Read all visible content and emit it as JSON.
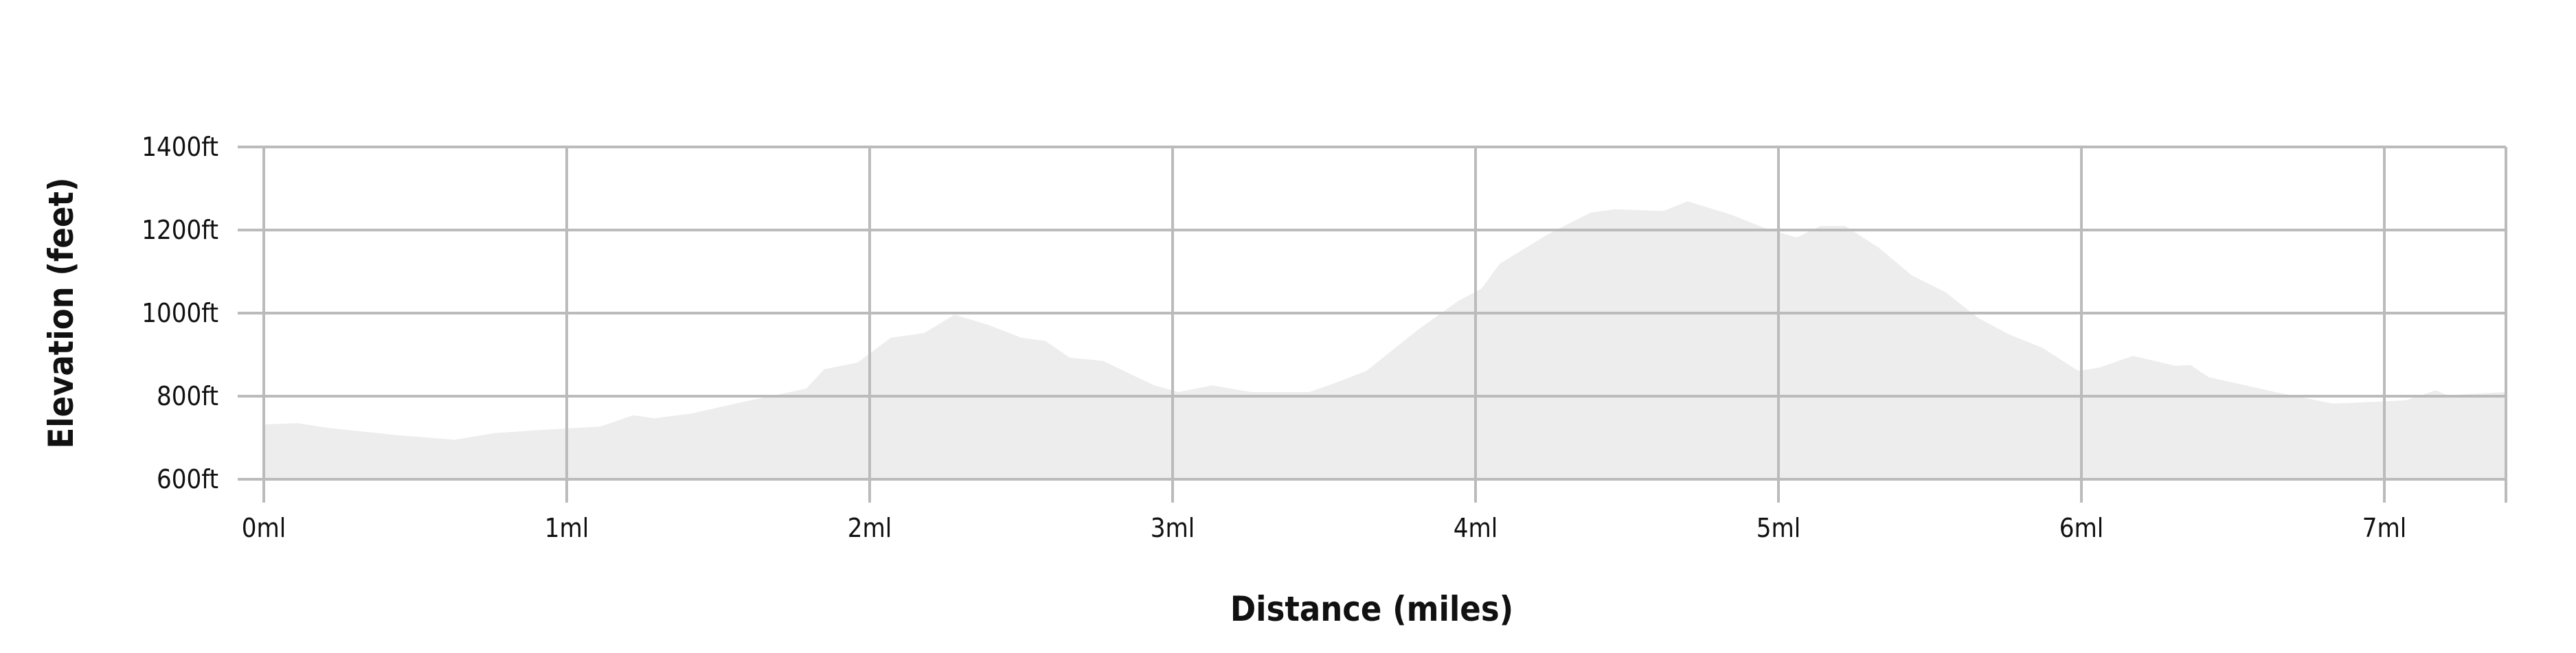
{
  "chart_data": {
    "type": "area",
    "title": "",
    "xlabel": "Distance (miles)",
    "ylabel": "Elevation (feet)",
    "xlim": [
      0,
      7.4
    ],
    "ylim": [
      600,
      1400
    ],
    "grid": true,
    "fill_color": "#ededed",
    "grid_color": "#bbbbbb",
    "x_ticks": [
      0,
      1,
      2,
      3,
      4,
      5,
      6,
      7
    ],
    "x_tick_labels": [
      "0ml",
      "1ml",
      "2ml",
      "3ml",
      "4ml",
      "5ml",
      "6ml",
      "7ml"
    ],
    "y_ticks": [
      600,
      800,
      1000,
      1200,
      1400
    ],
    "y_tick_labels": [
      "600ft",
      "800ft",
      "1000ft",
      "1200ft",
      "1400ft"
    ],
    "x": [
      0,
      0.11,
      0.22,
      0.43,
      0.63,
      0.76,
      0.92,
      1.11,
      1.22,
      1.29,
      1.41,
      1.58,
      1.79,
      1.85,
      1.96,
      2.07,
      2.18,
      2.28,
      2.39,
      2.5,
      2.58,
      2.66,
      2.77,
      2.94,
      3.02,
      3.13,
      3.26,
      3.45,
      3.53,
      3.64,
      3.81,
      3.94,
      4.02,
      4.08,
      4.24,
      4.38,
      4.46,
      4.62,
      4.7,
      4.84,
      4.95,
      5.06,
      5.14,
      5.22,
      5.33,
      5.44,
      5.55,
      5.66,
      5.76,
      5.87,
      5.99,
      6.06,
      6.17,
      6.31,
      6.36,
      6.42,
      6.64,
      6.75,
      6.83,
      7.07,
      7.17,
      7.21,
      7.3,
      7.4
    ],
    "y": [
      732,
      735,
      723,
      707,
      695,
      711,
      719,
      727,
      754,
      747,
      758,
      786,
      818,
      865,
      881,
      941,
      952,
      996,
      972,
      941,
      933,
      893,
      885,
      826,
      810,
      826,
      810,
      810,
      830,
      861,
      960,
      1028,
      1059,
      1119,
      1190,
      1242,
      1250,
      1246,
      1269,
      1238,
      1206,
      1182,
      1210,
      1210,
      1158,
      1091,
      1051,
      988,
      949,
      917,
      861,
      869,
      897,
      873,
      875,
      846,
      810,
      794,
      782,
      790,
      814,
      802,
      806,
      810
    ]
  }
}
